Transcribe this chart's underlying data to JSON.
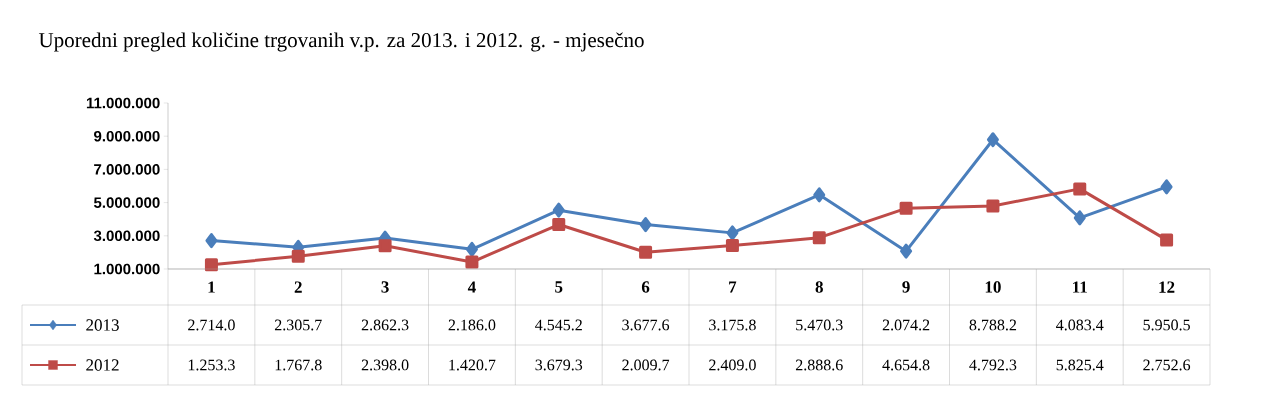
{
  "chart_data": {
    "type": "line",
    "title": "Uporedni pregled količine trgovanih v.p. za 2013. i 2012. g. - mjesečno",
    "categories": [
      "1",
      "2",
      "3",
      "4",
      "5",
      "6",
      "7",
      "8",
      "9",
      "10",
      "11",
      "12"
    ],
    "series": [
      {
        "name": "2013",
        "color": "#4a7ebb",
        "marker": "diamond",
        "values": [
          2714000,
          2305700,
          2862300,
          2186000,
          4545200,
          3677600,
          3175800,
          5470300,
          2074200,
          8788200,
          4083400,
          5950500
        ],
        "value_labels": [
          "2.714.0",
          "2.305.7",
          "2.862.3",
          "2.186.0",
          "4.545.2",
          "3.677.6",
          "3.175.8",
          "5.470.3",
          "2.074.2",
          "8.788.2",
          "4.083.4",
          "5.950.5"
        ]
      },
      {
        "name": "2012",
        "color": "#be4b48",
        "marker": "square",
        "values": [
          1253300,
          1767800,
          2398000,
          1420700,
          3679300,
          2009700,
          2409000,
          2888600,
          4654800,
          4792300,
          5825400,
          2752600
        ],
        "value_labels": [
          "1.253.3",
          "1.767.8",
          "2.398.0",
          "1.420.7",
          "3.679.3",
          "2.009.7",
          "2.409.0",
          "2.888.6",
          "4.654.8",
          "4.792.3",
          "5.825.4",
          "2.752.6"
        ]
      }
    ],
    "ylim": [
      1000000,
      11000000
    ],
    "yticks": [
      {
        "value": 1000000,
        "label": "1.000.000"
      },
      {
        "value": 3000000,
        "label": "3.000.000"
      },
      {
        "value": 5000000,
        "label": "5.000.000"
      },
      {
        "value": 7000000,
        "label": "7.000.000"
      },
      {
        "value": 9000000,
        "label": "9.000.000"
      },
      {
        "value": 11000000,
        "label": "11.000.000"
      }
    ],
    "grid": false,
    "legend": "bottom left",
    "line_style": "solid"
  }
}
